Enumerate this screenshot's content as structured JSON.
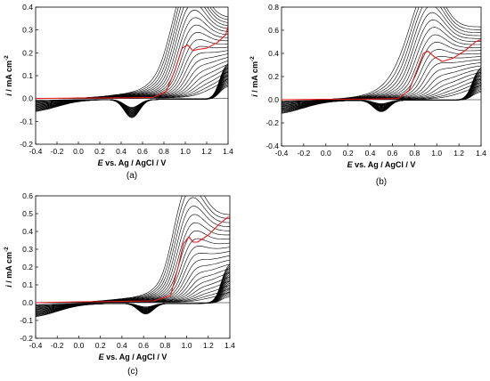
{
  "chart_data": [
    {
      "type": "line",
      "caption": "(a)",
      "xlabel_italic": "E",
      "xlabel_rest": " vs. Ag / AgCl / V",
      "ylabel_italic": "i",
      "ylabel_rest": " / mA cm",
      "ylabel_sup": "-2",
      "xlim": [
        -0.4,
        1.4
      ],
      "ylim": [
        -0.2,
        0.4
      ],
      "xticks": [
        "-0.4",
        "-0.2",
        "0.0",
        "0.2",
        "0.4",
        "0.6",
        "0.8",
        "1.0",
        "1.2",
        "1.4"
      ],
      "yticks": [
        "-0.2",
        "-0.1",
        "0.0",
        "0.1",
        "0.2",
        "0.3",
        "0.4"
      ],
      "colors": {
        "cycles": "#000000",
        "first_cycle": "#e8191c"
      },
      "series": [
        {
          "cycles": 20,
          "rev_peak_x": 0.5,
          "rev_peak_min": -0.035,
          "rev_peak_max": -0.08,
          "low_min": -0.005,
          "low_max": -0.07,
          "peak_x": 1.03,
          "peak_min": 0.02,
          "peak_max": 0.23,
          "end_min": 0.12,
          "end_max": 0.335,
          "onset_min": 1.2,
          "onset_max": 0.72,
          "fwd_base_min": 0.005,
          "fwd_base_max": 0.04,
          "red": {
            "x": [
              -0.4,
              0.0,
              0.4,
              0.7,
              0.82,
              0.9,
              0.97,
              1.02,
              1.07,
              1.12,
              1.2,
              1.3,
              1.38,
              1.4
            ],
            "y": [
              0.0,
              0.002,
              0.003,
              0.005,
              0.03,
              0.12,
              0.22,
              0.235,
              0.21,
              0.215,
              0.22,
              0.245,
              0.28,
              0.32
            ]
          }
        }
      ]
    },
    {
      "type": "line",
      "caption": "(b)",
      "xlabel_italic": "E",
      "xlabel_rest": " vs. Ag / AgCl / V",
      "ylabel_italic": "i",
      "ylabel_rest": " / mA cm",
      "ylabel_sup": "-2",
      "xlim": [
        -0.4,
        1.4
      ],
      "ylim": [
        -0.4,
        0.8
      ],
      "xticks": [
        "-0.4",
        "-0.2",
        "0.0",
        "0.2",
        "0.4",
        "0.6",
        "0.8",
        "1.0",
        "1.2",
        "1.4"
      ],
      "yticks": [
        "-0.4",
        "-0.2",
        "0.0",
        "0.2",
        "0.4",
        "0.6",
        "0.8"
      ],
      "colors": {
        "cycles": "#000000",
        "first_cycle": "#e8191c"
      },
      "series": [
        {
          "cycles": 20,
          "rev_peak_x": 0.5,
          "rev_peak_min": -0.03,
          "rev_peak_max": -0.1,
          "low_min": -0.01,
          "low_max": -0.15,
          "peak_x": 0.92,
          "peak_min": 0.03,
          "peak_max": 0.4,
          "end_min": 0.15,
          "end_max": 0.6,
          "onset_min": 1.15,
          "onset_max": 0.55,
          "fwd_base_min": 0.005,
          "fwd_base_max": 0.06,
          "red": {
            "x": [
              -0.4,
              0.0,
              0.4,
              0.65,
              0.75,
              0.82,
              0.88,
              0.92,
              0.98,
              1.05,
              1.15,
              1.25,
              1.35,
              1.4
            ],
            "y": [
              0.0,
              0.003,
              0.005,
              0.01,
              0.08,
              0.25,
              0.4,
              0.42,
              0.37,
              0.33,
              0.36,
              0.42,
              0.5,
              0.52
            ]
          }
        }
      ]
    },
    {
      "type": "line",
      "caption": "(c)",
      "xlabel_italic": "E",
      "xlabel_rest": " vs. Ag / AgCl / V",
      "ylabel_italic": "i",
      "ylabel_rest": " / mA cm",
      "ylabel_sup": "-2",
      "xlim": [
        -0.4,
        1.4
      ],
      "ylim": [
        -0.2,
        0.6
      ],
      "xticks": [
        "-0.4",
        "-0.2",
        "0.0",
        "0.2",
        "0.4",
        "0.6",
        "0.8",
        "1.0",
        "1.2",
        "1.4"
      ],
      "yticks": [
        "-0.2",
        "-0.1",
        "0.0",
        "0.1",
        "0.2",
        "0.3",
        "0.4",
        "0.5",
        "0.6"
      ],
      "colors": {
        "cycles": "#000000",
        "first_cycle": "#e8191c"
      },
      "series": [
        {
          "cycles": 20,
          "rev_peak_x": 0.62,
          "rev_peak_min": -0.02,
          "rev_peak_max": -0.06,
          "low_min": -0.01,
          "low_max": -0.1,
          "peak_x": 1.0,
          "peak_min": 0.03,
          "peak_max": 0.3,
          "end_min": 0.08,
          "end_max": 0.47,
          "onset_min": 1.2,
          "onset_max": 0.78,
          "fwd_base_min": 0.005,
          "fwd_base_max": 0.05,
          "red": {
            "x": [
              -0.4,
              0.0,
              0.4,
              0.7,
              0.85,
              0.92,
              0.97,
              1.02,
              1.06,
              1.1,
              1.2,
              1.3,
              1.38,
              1.4
            ],
            "y": [
              0.0,
              0.005,
              0.007,
              0.01,
              0.04,
              0.2,
              0.33,
              0.37,
              0.34,
              0.34,
              0.38,
              0.44,
              0.48,
              0.48
            ]
          }
        }
      ]
    }
  ]
}
